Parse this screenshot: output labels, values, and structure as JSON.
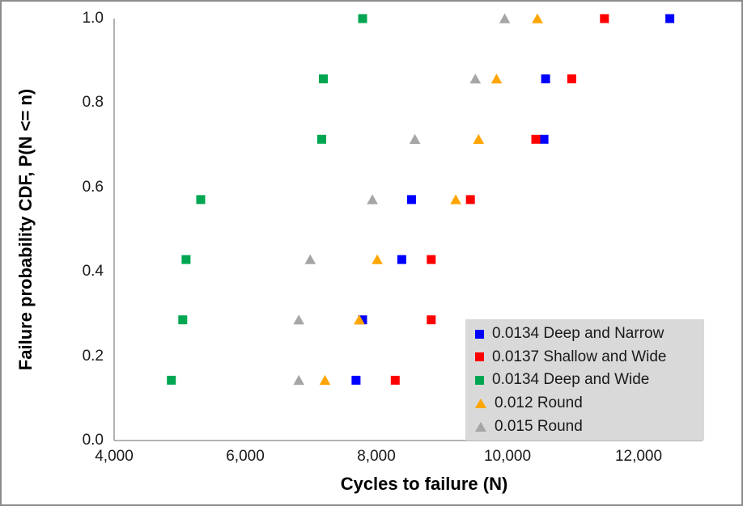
{
  "chart_data": {
    "type": "scatter",
    "title": "",
    "xlabel": "Cycles to failure (N)",
    "ylabel": "Failure probability CDF, P(N <= n)",
    "xlim": [
      4000,
      13000
    ],
    "ylim": [
      0,
      1
    ],
    "grid": false,
    "legend_position": "lower-right",
    "x_tick_labels": [
      "4,000",
      "6,000",
      "8,000",
      "10,000",
      "12,000"
    ],
    "x_tick_values": [
      4000,
      6000,
      8000,
      10000,
      12000
    ],
    "y_tick_labels": [
      "0.0",
      "0.2",
      "0.4",
      "0.6",
      "0.8",
      "1.0"
    ],
    "y_tick_values": [
      0.0,
      0.2,
      0.4,
      0.6,
      0.8,
      1.0
    ],
    "cdf_values": [
      0.143,
      0.286,
      0.429,
      0.571,
      0.714,
      0.857,
      1.0
    ],
    "series": [
      {
        "name": "0.0134 Deep and Narrow",
        "marker": "square",
        "color": "#0000FF",
        "x": [
          7700,
          7800,
          8400,
          8550,
          10575,
          10600,
          12500
        ]
      },
      {
        "name": "0.0137 Shallow and Wide",
        "marker": "square",
        "color": "#FF0000",
        "x": [
          8300,
          8850,
          8850,
          9450,
          10450,
          11000,
          11500
        ]
      },
      {
        "name": "0.0134 Deep and Wide",
        "marker": "square",
        "color": "#00A651",
        "x": [
          4875,
          5050,
          5100,
          5325,
          7175,
          7200,
          7800
        ]
      },
      {
        "name": "0.012 Round",
        "marker": "triangle",
        "color": "#FFA500",
        "x": [
          7225,
          7750,
          8025,
          9225,
          9575,
          9850,
          10475
        ]
      },
      {
        "name": "0.015 Round",
        "marker": "triangle",
        "color": "#A6A6A6",
        "x": [
          6825,
          6825,
          7000,
          7950,
          8600,
          9525,
          9975
        ]
      }
    ]
  }
}
